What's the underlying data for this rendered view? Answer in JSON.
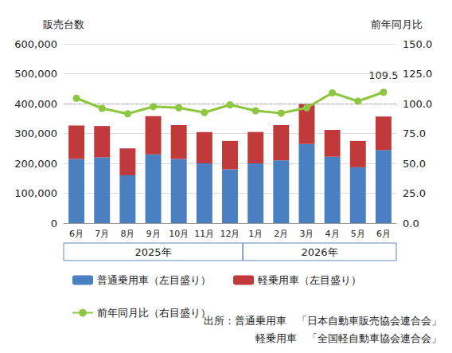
{
  "chart_data": {
    "type": "bar",
    "y_label": "販売台数",
    "y2_label": "前年同月比",
    "categories": [
      "6月",
      "7月",
      "8月",
      "9月",
      "10月",
      "11月",
      "12月",
      "1月",
      "2月",
      "3月",
      "4月",
      "5月",
      "6月"
    ],
    "category_groups": [
      {
        "label": "2025年",
        "count": 7
      },
      {
        "label": "2026年",
        "count": 6
      }
    ],
    "stacked": true,
    "grid": true,
    "legend": "bottom",
    "series": [
      {
        "name": "普通乗用車（左目盛り）",
        "type": "bar",
        "color": "#4a7fc1",
        "values": [
          215000,
          220000,
          160000,
          230000,
          215000,
          200000,
          180000,
          200000,
          210000,
          265000,
          222000,
          187000,
          245000
        ]
      },
      {
        "name": "軽乗用車（左目盛り）",
        "type": "bar",
        "color": "#c0393b",
        "values": [
          112000,
          105000,
          90000,
          128000,
          113000,
          105000,
          95000,
          105000,
          118000,
          135000,
          90000,
          88000,
          112000
        ]
      },
      {
        "name": "前年同月比（右目盛り）",
        "type": "line",
        "axis": "y2",
        "color": "#8dc63f",
        "marker": "circle",
        "values": [
          104.5,
          96,
          91.5,
          97.5,
          96.5,
          92.5,
          99,
          94,
          92,
          96.5,
          109,
          102,
          109.5
        ],
        "value_labels": [
          null,
          null,
          null,
          null,
          null,
          null,
          null,
          null,
          null,
          null,
          null,
          null,
          "109.5"
        ]
      }
    ],
    "hlines": [
      {
        "axis": "y2",
        "value": 100,
        "line_style": "dashed"
      }
    ],
    "ylim": [
      0,
      600000
    ],
    "yticks": [
      0,
      {
        "value": 100000,
        "label": "100,000"
      },
      {
        "value": 200000,
        "label": "200,000"
      },
      {
        "value": 300000,
        "label": "300,000"
      },
      {
        "value": 400000,
        "label": "400,000"
      },
      {
        "value": 500000,
        "label": "500,000"
      },
      {
        "value": 600000,
        "label": "600,000"
      }
    ],
    "y2lim": [
      0,
      150
    ],
    "y2ticks": [
      {
        "value": 0,
        "label": "0.0"
      },
      {
        "value": 25,
        "label": "25.0"
      },
      {
        "value": 50,
        "label": "50.0"
      },
      {
        "value": 75,
        "label": "75.0"
      },
      {
        "value": 100,
        "label": "100.0"
      },
      {
        "value": 125,
        "label": "125.0"
      },
      {
        "value": 150,
        "label": "150.0"
      }
    ],
    "source": [
      "出所：普通乗用車　「日本自動車販売協会連合会」",
      "軽乗用車　「全国軽自動車協会連合会」"
    ]
  }
}
